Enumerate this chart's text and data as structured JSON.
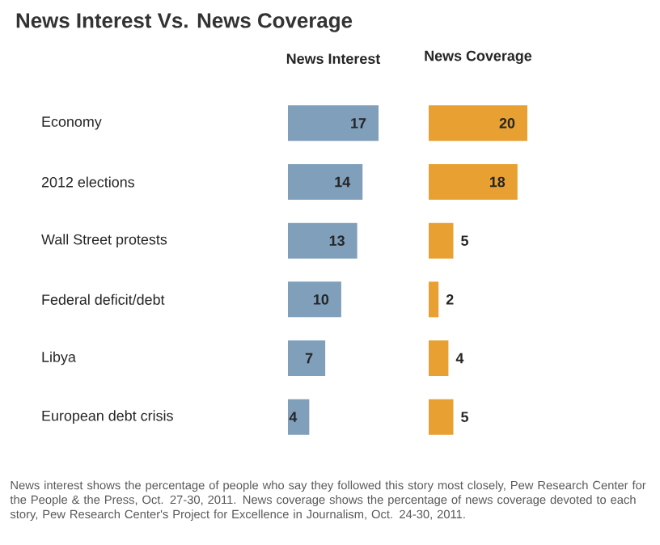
{
  "chart_data": [
    {
      "type": "bar",
      "orientation": "horizontal",
      "title": "News Interest Vs. News Coverage",
      "subtitle": "News Interest",
      "categories": [
        "Economy",
        "2012 elections",
        "Wall Street protests",
        "Federal deficit/debt",
        "Libya",
        "European debt crisis"
      ],
      "values": [
        17,
        14,
        13,
        10,
        7,
        4
      ],
      "color": "#7f9fbb",
      "data_labels": true,
      "tick_labels": "y",
      "annotations": [
        "News interest shows the percentage of people who say they followed this story most closely, Pew Research Center for the People & the Press, Oct. 27-30, 2011. News coverage shows the percentage of news coverage devoted to each story, Pew Research Center's Project for Excellence in Journalism, Oct. 24-30, 2011."
      ]
    },
    {
      "type": "bar",
      "orientation": "horizontal",
      "title": "News Coverage",
      "categories": [
        null,
        null,
        null,
        null,
        null,
        null
      ],
      "values": [
        20,
        18,
        5,
        2,
        4,
        5
      ],
      "color": "#e8a032",
      "data_labels": true
    }
  ]
}
